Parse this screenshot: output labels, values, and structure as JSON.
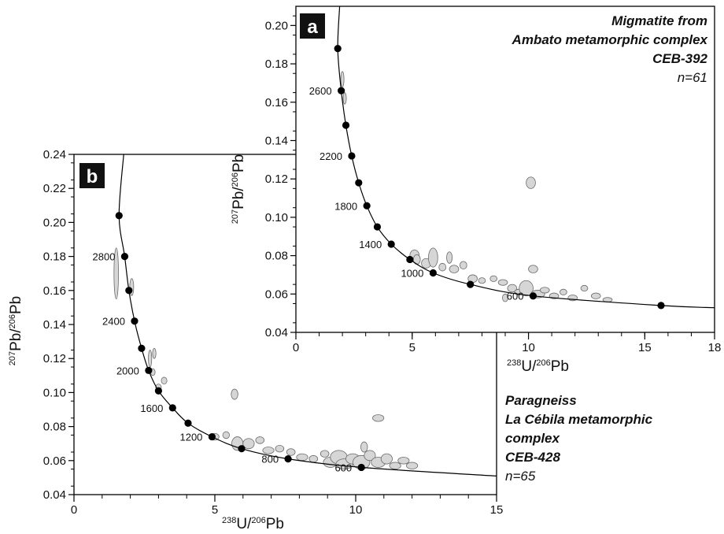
{
  "chart_data": [
    {
      "panel": "a",
      "type": "scatter",
      "title_lines": [
        "Migmatite from",
        "Ambato metamorphic complex",
        "CEB-392"
      ],
      "n_label": "n=61",
      "xlabel": {
        "top": "238",
        "base": "U/",
        "top2": "206",
        "base2": "Pb"
      },
      "ylabel": {
        "top": "207",
        "base": "Pb/",
        "top2": "206",
        "base2": "Pb"
      },
      "xlim": [
        0,
        18
      ],
      "ylim": [
        0.04,
        0.21
      ],
      "x_ticks": [
        "0",
        "5",
        "10",
        "15",
        "18"
      ],
      "y_ticks": [
        "0.04",
        "0.06",
        "0.08",
        "0.10",
        "0.12",
        "0.14",
        "0.16",
        "0.18",
        "0.20"
      ],
      "concordia_markers": [
        {
          "x": 1.8,
          "y": 0.188
        },
        {
          "x": 1.95,
          "y": 0.166,
          "label": "2600"
        },
        {
          "x": 2.15,
          "y": 0.148
        },
        {
          "x": 2.4,
          "y": 0.132,
          "label": "2200"
        },
        {
          "x": 2.7,
          "y": 0.118
        },
        {
          "x": 3.05,
          "y": 0.106,
          "label": "1800"
        },
        {
          "x": 3.5,
          "y": 0.095
        },
        {
          "x": 4.1,
          "y": 0.086,
          "label": "1400"
        },
        {
          "x": 4.9,
          "y": 0.078
        },
        {
          "x": 5.9,
          "y": 0.071,
          "label": "1000"
        },
        {
          "x": 7.5,
          "y": 0.065
        },
        {
          "x": 10.2,
          "y": 0.059,
          "label": "600"
        },
        {
          "x": 15.7,
          "y": 0.054
        }
      ],
      "ellipses": [
        {
          "x": 2.0,
          "y": 0.172,
          "rx": 0.06,
          "ry": 0.004
        },
        {
          "x": 2.1,
          "y": 0.162,
          "rx": 0.05,
          "ry": 0.003
        },
        {
          "x": 10.1,
          "y": 0.118,
          "rx": 0.2,
          "ry": 0.003
        },
        {
          "x": 5.1,
          "y": 0.08,
          "rx": 0.2,
          "ry": 0.003
        },
        {
          "x": 5.2,
          "y": 0.078,
          "rx": 0.15,
          "ry": 0.0025
        },
        {
          "x": 5.6,
          "y": 0.076,
          "rx": 0.2,
          "ry": 0.0025
        },
        {
          "x": 5.9,
          "y": 0.079,
          "rx": 0.2,
          "ry": 0.005
        },
        {
          "x": 6.3,
          "y": 0.074,
          "rx": 0.15,
          "ry": 0.002
        },
        {
          "x": 6.6,
          "y": 0.079,
          "rx": 0.12,
          "ry": 0.003
        },
        {
          "x": 6.8,
          "y": 0.073,
          "rx": 0.2,
          "ry": 0.002
        },
        {
          "x": 7.2,
          "y": 0.075,
          "rx": 0.15,
          "ry": 0.002
        },
        {
          "x": 7.6,
          "y": 0.068,
          "rx": 0.2,
          "ry": 0.002
        },
        {
          "x": 8.0,
          "y": 0.067,
          "rx": 0.15,
          "ry": 0.0015
        },
        {
          "x": 8.5,
          "y": 0.068,
          "rx": 0.15,
          "ry": 0.0015
        },
        {
          "x": 8.9,
          "y": 0.066,
          "rx": 0.2,
          "ry": 0.0015
        },
        {
          "x": 9.3,
          "y": 0.063,
          "rx": 0.2,
          "ry": 0.002
        },
        {
          "x": 9.6,
          "y": 0.061,
          "rx": 0.2,
          "ry": 0.0015
        },
        {
          "x": 9.9,
          "y": 0.063,
          "rx": 0.3,
          "ry": 0.004
        },
        {
          "x": 10.2,
          "y": 0.073,
          "rx": 0.2,
          "ry": 0.002
        },
        {
          "x": 10.4,
          "y": 0.06,
          "rx": 0.3,
          "ry": 0.002
        },
        {
          "x": 10.7,
          "y": 0.062,
          "rx": 0.2,
          "ry": 0.0015
        },
        {
          "x": 11.1,
          "y": 0.059,
          "rx": 0.2,
          "ry": 0.0015
        },
        {
          "x": 11.5,
          "y": 0.061,
          "rx": 0.15,
          "ry": 0.0015
        },
        {
          "x": 11.9,
          "y": 0.058,
          "rx": 0.2,
          "ry": 0.0015
        },
        {
          "x": 12.4,
          "y": 0.063,
          "rx": 0.15,
          "ry": 0.0015
        },
        {
          "x": 12.9,
          "y": 0.059,
          "rx": 0.2,
          "ry": 0.0015
        },
        {
          "x": 13.4,
          "y": 0.057,
          "rx": 0.2,
          "ry": 0.0012
        },
        {
          "x": 9.0,
          "y": 0.058,
          "rx": 0.12,
          "ry": 0.002
        }
      ]
    },
    {
      "panel": "b",
      "type": "scatter",
      "title_lines": [
        "Paragneiss",
        "La Cébila metamorphic",
        "complex",
        "CEB-428"
      ],
      "n_label": "n=65",
      "xlabel": {
        "top": "238",
        "base": "U/",
        "top2": "206",
        "base2": "Pb"
      },
      "ylabel": {
        "top": "207",
        "base": "Pb/",
        "top2": "206",
        "base2": "Pb"
      },
      "xlim": [
        0,
        15
      ],
      "ylim": [
        0.04,
        0.24
      ],
      "x_ticks": [
        "0",
        "5",
        "10",
        "15"
      ],
      "y_ticks": [
        "0.04",
        "0.06",
        "0.08",
        "0.10",
        "0.12",
        "0.14",
        "0.16",
        "0.18",
        "0.20",
        "0.22",
        "0.24"
      ],
      "concordia_markers": [
        {
          "x": 1.6,
          "y": 0.204
        },
        {
          "x": 1.8,
          "y": 0.18,
          "label": "2800"
        },
        {
          "x": 1.95,
          "y": 0.16
        },
        {
          "x": 2.15,
          "y": 0.142,
          "label": "2400"
        },
        {
          "x": 2.4,
          "y": 0.126
        },
        {
          "x": 2.65,
          "y": 0.113,
          "label": "2000"
        },
        {
          "x": 3.0,
          "y": 0.101
        },
        {
          "x": 3.5,
          "y": 0.091,
          "label": "1600"
        },
        {
          "x": 4.05,
          "y": 0.082
        },
        {
          "x": 4.9,
          "y": 0.074,
          "label": "1200"
        },
        {
          "x": 5.95,
          "y": 0.067
        },
        {
          "x": 7.6,
          "y": 0.061,
          "label": "800"
        },
        {
          "x": 10.2,
          "y": 0.056,
          "label": "600"
        }
      ],
      "ellipses": [
        {
          "x": 1.5,
          "y": 0.17,
          "rx": 0.08,
          "ry": 0.015
        },
        {
          "x": 2.05,
          "y": 0.162,
          "rx": 0.07,
          "ry": 0.005
        },
        {
          "x": 2.7,
          "y": 0.12,
          "rx": 0.06,
          "ry": 0.005
        },
        {
          "x": 2.85,
          "y": 0.123,
          "rx": 0.06,
          "ry": 0.003
        },
        {
          "x": 3.0,
          "y": 0.103,
          "rx": 0.1,
          "ry": 0.002
        },
        {
          "x": 3.2,
          "y": 0.107,
          "rx": 0.1,
          "ry": 0.002
        },
        {
          "x": 2.8,
          "y": 0.112,
          "rx": 0.08,
          "ry": 0.002
        },
        {
          "x": 5.7,
          "y": 0.099,
          "rx": 0.12,
          "ry": 0.003
        },
        {
          "x": 5.0,
          "y": 0.074,
          "rx": 0.15,
          "ry": 0.002
        },
        {
          "x": 5.4,
          "y": 0.075,
          "rx": 0.12,
          "ry": 0.002
        },
        {
          "x": 5.8,
          "y": 0.07,
          "rx": 0.2,
          "ry": 0.004
        },
        {
          "x": 6.2,
          "y": 0.07,
          "rx": 0.2,
          "ry": 0.003
        },
        {
          "x": 6.6,
          "y": 0.072,
          "rx": 0.15,
          "ry": 0.002
        },
        {
          "x": 6.9,
          "y": 0.066,
          "rx": 0.2,
          "ry": 0.002
        },
        {
          "x": 7.3,
          "y": 0.067,
          "rx": 0.15,
          "ry": 0.002
        },
        {
          "x": 7.7,
          "y": 0.065,
          "rx": 0.15,
          "ry": 0.002
        },
        {
          "x": 8.1,
          "y": 0.062,
          "rx": 0.2,
          "ry": 0.002
        },
        {
          "x": 8.5,
          "y": 0.061,
          "rx": 0.15,
          "ry": 0.002
        },
        {
          "x": 8.9,
          "y": 0.064,
          "rx": 0.15,
          "ry": 0.002
        },
        {
          "x": 9.1,
          "y": 0.059,
          "rx": 0.25,
          "ry": 0.003
        },
        {
          "x": 9.4,
          "y": 0.062,
          "rx": 0.3,
          "ry": 0.004
        },
        {
          "x": 9.6,
          "y": 0.058,
          "rx": 0.3,
          "ry": 0.003
        },
        {
          "x": 9.9,
          "y": 0.061,
          "rx": 0.25,
          "ry": 0.003
        },
        {
          "x": 10.2,
          "y": 0.059,
          "rx": 0.3,
          "ry": 0.004
        },
        {
          "x": 10.5,
          "y": 0.063,
          "rx": 0.2,
          "ry": 0.003
        },
        {
          "x": 10.8,
          "y": 0.059,
          "rx": 0.25,
          "ry": 0.003
        },
        {
          "x": 11.1,
          "y": 0.061,
          "rx": 0.2,
          "ry": 0.003
        },
        {
          "x": 11.4,
          "y": 0.057,
          "rx": 0.2,
          "ry": 0.002
        },
        {
          "x": 11.7,
          "y": 0.06,
          "rx": 0.2,
          "ry": 0.002
        },
        {
          "x": 12.0,
          "y": 0.057,
          "rx": 0.2,
          "ry": 0.002
        },
        {
          "x": 10.3,
          "y": 0.068,
          "rx": 0.12,
          "ry": 0.003
        },
        {
          "x": 10.8,
          "y": 0.085,
          "rx": 0.2,
          "ry": 0.002
        }
      ]
    }
  ]
}
